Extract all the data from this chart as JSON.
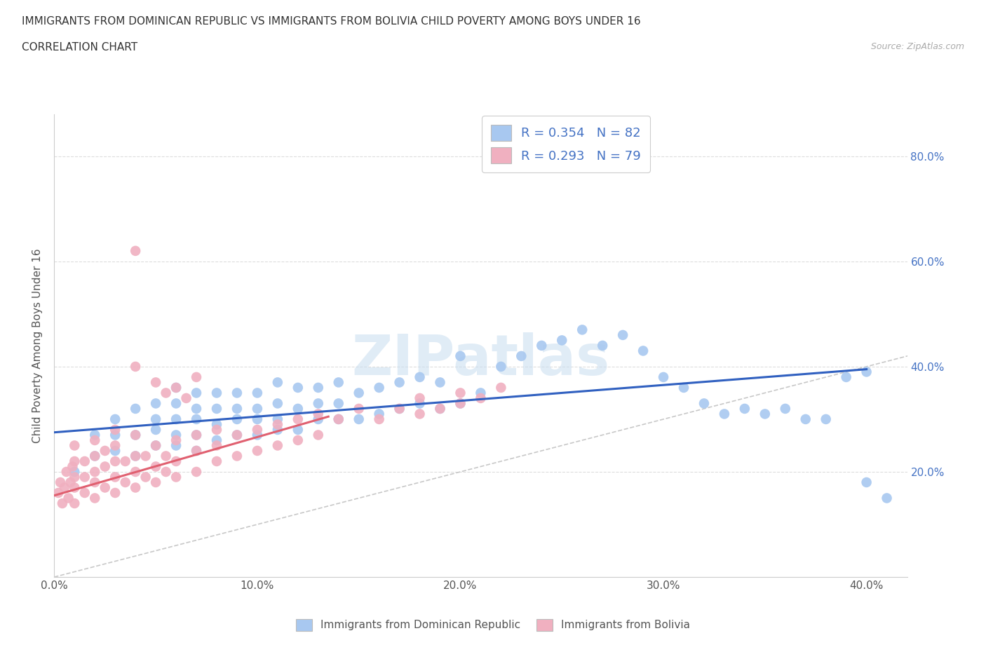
{
  "title_line1": "IMMIGRANTS FROM DOMINICAN REPUBLIC VS IMMIGRANTS FROM BOLIVIA CHILD POVERTY AMONG BOYS UNDER 16",
  "title_line2": "CORRELATION CHART",
  "source_text": "Source: ZipAtlas.com",
  "ylabel": "Child Poverty Among Boys Under 16",
  "xlim": [
    0.0,
    0.42
  ],
  "ylim": [
    0.0,
    0.88
  ],
  "xtick_labels": [
    "0.0%",
    "10.0%",
    "20.0%",
    "30.0%",
    "40.0%"
  ],
  "xtick_vals": [
    0.0,
    0.1,
    0.2,
    0.3,
    0.4
  ],
  "ytick_labels": [
    "20.0%",
    "40.0%",
    "60.0%",
    "80.0%"
  ],
  "ytick_vals": [
    0.2,
    0.4,
    0.6,
    0.8
  ],
  "blue_color": "#a8c8f0",
  "pink_color": "#f0b0c0",
  "blue_line_color": "#3060c0",
  "pink_line_color": "#e06070",
  "diag_color": "#c8c8c8",
  "r_blue": 0.354,
  "n_blue": 82,
  "r_pink": 0.293,
  "n_pink": 79,
  "legend_label_blue": "Immigrants from Dominican Republic",
  "legend_label_pink": "Immigrants from Bolivia",
  "watermark": "ZIPatlas",
  "blue_line_x0": 0.0,
  "blue_line_y0": 0.275,
  "blue_line_x1": 0.4,
  "blue_line_y1": 0.395,
  "pink_line_x0": 0.0,
  "pink_line_y0": 0.155,
  "pink_line_x1": 0.135,
  "pink_line_y1": 0.305,
  "blue_scatter_x": [
    0.01,
    0.02,
    0.02,
    0.03,
    0.03,
    0.03,
    0.04,
    0.04,
    0.04,
    0.05,
    0.05,
    0.05,
    0.05,
    0.06,
    0.06,
    0.06,
    0.06,
    0.06,
    0.07,
    0.07,
    0.07,
    0.07,
    0.07,
    0.08,
    0.08,
    0.08,
    0.08,
    0.09,
    0.09,
    0.09,
    0.09,
    0.1,
    0.1,
    0.1,
    0.1,
    0.11,
    0.11,
    0.11,
    0.11,
    0.12,
    0.12,
    0.12,
    0.13,
    0.13,
    0.13,
    0.14,
    0.14,
    0.14,
    0.15,
    0.15,
    0.16,
    0.16,
    0.17,
    0.17,
    0.18,
    0.18,
    0.19,
    0.19,
    0.2,
    0.2,
    0.21,
    0.22,
    0.23,
    0.24,
    0.25,
    0.26,
    0.27,
    0.28,
    0.29,
    0.3,
    0.31,
    0.32,
    0.33,
    0.34,
    0.35,
    0.36,
    0.37,
    0.38,
    0.39,
    0.4,
    0.4,
    0.41
  ],
  "blue_scatter_y": [
    0.2,
    0.23,
    0.27,
    0.24,
    0.27,
    0.3,
    0.23,
    0.27,
    0.32,
    0.25,
    0.28,
    0.3,
    0.33,
    0.25,
    0.27,
    0.3,
    0.33,
    0.36,
    0.24,
    0.27,
    0.3,
    0.32,
    0.35,
    0.26,
    0.29,
    0.32,
    0.35,
    0.27,
    0.3,
    0.32,
    0.35,
    0.27,
    0.3,
    0.32,
    0.35,
    0.28,
    0.3,
    0.33,
    0.37,
    0.28,
    0.32,
    0.36,
    0.3,
    0.33,
    0.36,
    0.3,
    0.33,
    0.37,
    0.3,
    0.35,
    0.31,
    0.36,
    0.32,
    0.37,
    0.33,
    0.38,
    0.32,
    0.37,
    0.33,
    0.42,
    0.35,
    0.4,
    0.42,
    0.44,
    0.45,
    0.47,
    0.44,
    0.46,
    0.43,
    0.38,
    0.36,
    0.33,
    0.31,
    0.32,
    0.31,
    0.32,
    0.3,
    0.3,
    0.38,
    0.39,
    0.18,
    0.15
  ],
  "pink_scatter_x": [
    0.002,
    0.003,
    0.004,
    0.005,
    0.006,
    0.007,
    0.008,
    0.009,
    0.01,
    0.01,
    0.01,
    0.01,
    0.01,
    0.015,
    0.015,
    0.015,
    0.02,
    0.02,
    0.02,
    0.02,
    0.02,
    0.025,
    0.025,
    0.025,
    0.03,
    0.03,
    0.03,
    0.03,
    0.03,
    0.035,
    0.035,
    0.04,
    0.04,
    0.04,
    0.04,
    0.045,
    0.045,
    0.05,
    0.05,
    0.05,
    0.055,
    0.055,
    0.06,
    0.06,
    0.06,
    0.07,
    0.07,
    0.07,
    0.08,
    0.08,
    0.08,
    0.09,
    0.09,
    0.1,
    0.1,
    0.11,
    0.11,
    0.12,
    0.12,
    0.13,
    0.13,
    0.14,
    0.15,
    0.16,
    0.17,
    0.18,
    0.18,
    0.19,
    0.2,
    0.2,
    0.21,
    0.22,
    0.05,
    0.055,
    0.06,
    0.065,
    0.07,
    0.04,
    0.04
  ],
  "pink_scatter_y": [
    0.16,
    0.18,
    0.14,
    0.17,
    0.2,
    0.15,
    0.18,
    0.21,
    0.14,
    0.17,
    0.19,
    0.22,
    0.25,
    0.16,
    0.19,
    0.22,
    0.15,
    0.18,
    0.2,
    0.23,
    0.26,
    0.17,
    0.21,
    0.24,
    0.16,
    0.19,
    0.22,
    0.25,
    0.28,
    0.18,
    0.22,
    0.17,
    0.2,
    0.23,
    0.27,
    0.19,
    0.23,
    0.18,
    0.21,
    0.25,
    0.2,
    0.23,
    0.19,
    0.22,
    0.26,
    0.2,
    0.24,
    0.27,
    0.22,
    0.25,
    0.28,
    0.23,
    0.27,
    0.24,
    0.28,
    0.25,
    0.29,
    0.26,
    0.3,
    0.27,
    0.31,
    0.3,
    0.32,
    0.3,
    0.32,
    0.31,
    0.34,
    0.32,
    0.33,
    0.35,
    0.34,
    0.36,
    0.37,
    0.35,
    0.36,
    0.34,
    0.38,
    0.4,
    0.62
  ]
}
